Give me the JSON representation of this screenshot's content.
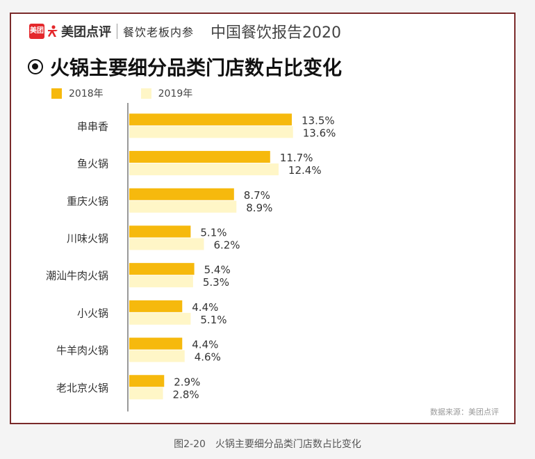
{
  "header": {
    "logo_text": "美团",
    "brand_name": "美团点评",
    "brand_sub": "餐饮老板内参",
    "report_title": "中国餐饮报告2020"
  },
  "chart_data": {
    "type": "bar",
    "orientation": "horizontal",
    "title": "火锅主要细分品类门店数占比变化",
    "categories": [
      "串串香",
      "鱼火锅",
      "重庆火锅",
      "川味火锅",
      "潮汕牛肉火锅",
      "小火锅",
      "牛羊肉火锅",
      "老北京火锅"
    ],
    "series": [
      {
        "name": "2018年",
        "values": [
          13.5,
          11.7,
          8.7,
          5.1,
          5.4,
          4.4,
          4.4,
          2.9
        ],
        "labels": [
          "13.5%",
          "11.7%",
          "8.7%",
          "5.1%",
          "5.4%",
          "4.4%",
          "4.4%",
          "2.9%"
        ],
        "color": "#f6b90d"
      },
      {
        "name": "2019年",
        "values": [
          13.6,
          12.4,
          8.9,
          6.2,
          5.3,
          5.1,
          4.6,
          2.8
        ],
        "labels": [
          "13.6%",
          "12.4%",
          "8.9%",
          "6.2%",
          "5.3%",
          "5.1%",
          "4.6%",
          "2.8%"
        ],
        "color": "#fff6c7"
      }
    ],
    "grid": false,
    "legend_position": "top-left"
  },
  "source": "数据来源：美团点评",
  "caption": "图2-20　火锅主要细分品类门店数占比变化"
}
